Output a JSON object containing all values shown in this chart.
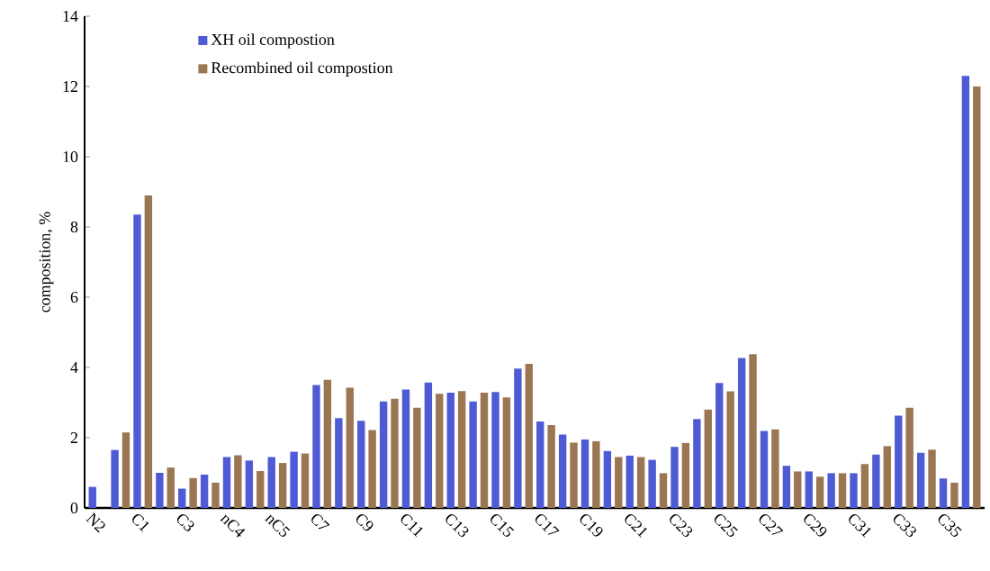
{
  "chart_data": {
    "type": "bar",
    "ylabel": "composition, %",
    "categories": [
      "N2",
      null,
      "C1",
      null,
      "C3",
      null,
      "nC4",
      null,
      "nC5",
      null,
      "C7",
      null,
      "C9",
      null,
      "C11",
      null,
      "C13",
      null,
      "C15",
      null,
      "C17",
      null,
      "C19",
      null,
      "C21",
      null,
      "C23",
      null,
      "C25",
      null,
      "C27",
      null,
      "C29",
      null,
      "C31",
      null,
      "C33",
      null,
      "C35",
      null
    ],
    "series": [
      {
        "name": "XH oil compostion",
        "color": "#4f5bd5",
        "values": [
          0.6,
          1.65,
          8.35,
          1.0,
          0.55,
          0.95,
          1.45,
          1.35,
          1.45,
          1.6,
          3.5,
          2.56,
          2.48,
          3.03,
          3.37,
          3.57,
          3.28,
          3.03,
          3.3,
          3.97,
          2.46,
          2.09,
          1.95,
          1.62,
          1.49,
          1.37,
          1.74,
          2.53,
          3.56,
          4.27,
          2.19,
          1.2,
          1.04,
          0.99,
          0.99,
          1.52,
          2.63,
          1.57,
          0.84,
          12.3
        ]
      },
      {
        "name": "Recombined oil compostion",
        "color": "#9b7653",
        "values": [
          0,
          2.15,
          8.9,
          1.15,
          0.85,
          0.72,
          1.5,
          1.05,
          1.28,
          1.55,
          3.65,
          3.42,
          2.22,
          3.11,
          2.85,
          3.25,
          3.33,
          3.28,
          3.15,
          4.1,
          2.36,
          1.86,
          1.9,
          1.45,
          1.45,
          0.99,
          1.85,
          2.8,
          3.32,
          4.38,
          2.24,
          1.04,
          0.89,
          0.99,
          1.25,
          1.76,
          2.85,
          1.66,
          0.72,
          12.0
        ]
      }
    ],
    "ylim": [
      0,
      14
    ],
    "yticks": [
      0,
      2,
      4,
      6,
      8,
      10,
      12,
      14
    ],
    "legend": "top left"
  }
}
